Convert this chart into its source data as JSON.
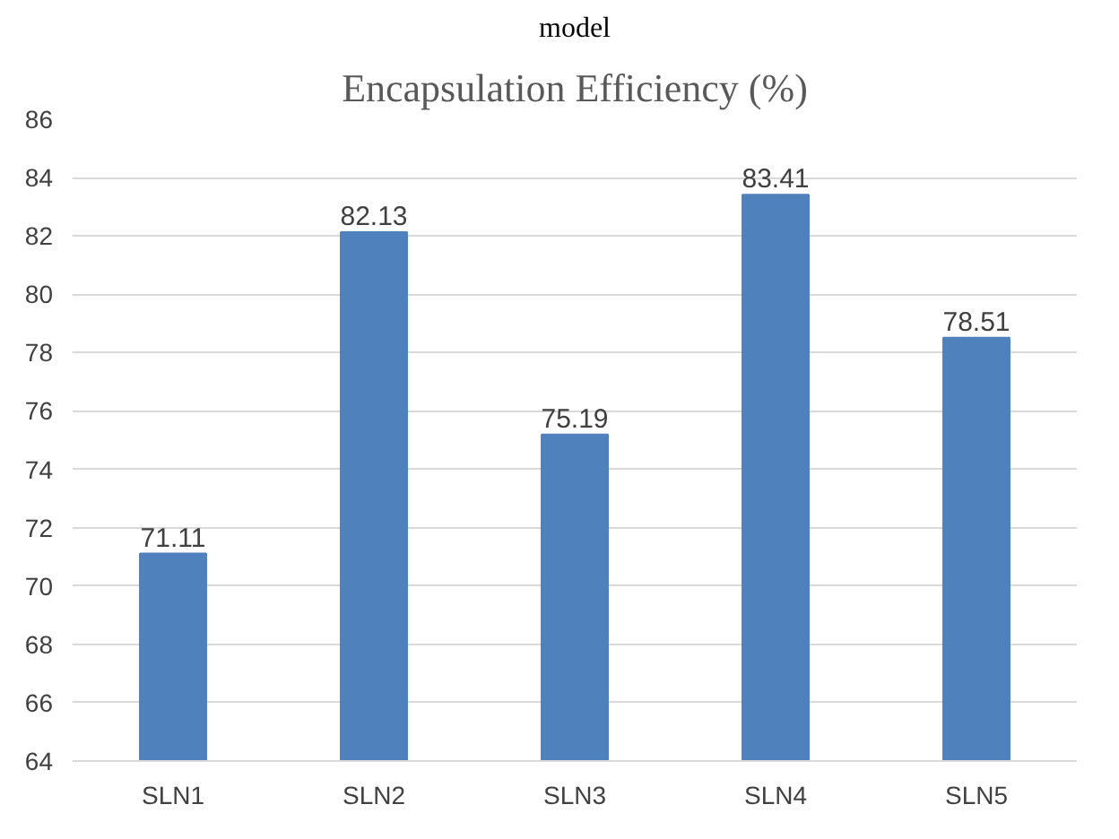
{
  "chart_data": {
    "type": "bar",
    "title": "Encapsulation Efficiency (%)",
    "annotations": [
      "model"
    ],
    "categories": [
      "SLN1",
      "SLN2",
      "SLN3",
      "SLN4",
      "SLN5"
    ],
    "values": [
      71.11,
      82.13,
      75.19,
      83.41,
      78.51
    ],
    "color": "#4f81bd",
    "ylim": [
      64,
      86
    ],
    "yticks": [
      64,
      66,
      68,
      70,
      72,
      74,
      76,
      78,
      80,
      82,
      84,
      86
    ],
    "grid": "y",
    "data_labels": true
  }
}
